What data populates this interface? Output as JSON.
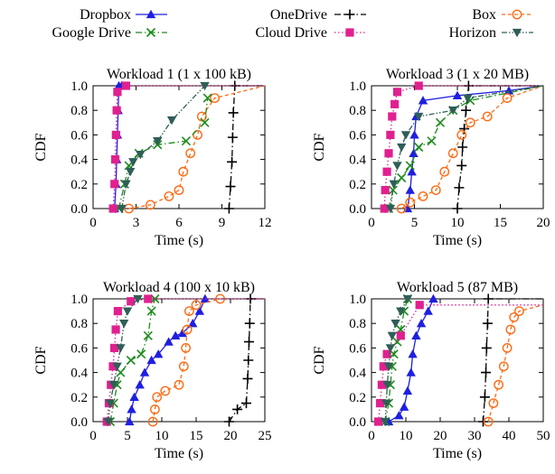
{
  "legend": [
    {
      "name": "Dropbox",
      "color": "#1f1fe0",
      "marker": "triangle",
      "dash": "solid"
    },
    {
      "name": "OneDrive",
      "color": "#000000",
      "marker": "plus",
      "dash": "dashdot"
    },
    {
      "name": "Box",
      "color": "#ff6a13",
      "marker": "circle",
      "dash": "dashed"
    },
    {
      "name": "Google Drive",
      "color": "#1c8c1c",
      "marker": "cross",
      "dash": "dashdot"
    },
    {
      "name": "Cloud Drive",
      "color": "#e0208f",
      "marker": "square",
      "dash": "dotted"
    },
    {
      "name": "Horizon",
      "color": "#2f5f57",
      "marker": "tridown",
      "dash": "dashdotdot"
    }
  ],
  "chart_data": [
    {
      "type": "line",
      "title": "Workload 1 (1 x 100 kB)",
      "xlabel": "Time (s)",
      "ylabel": "CDF",
      "xlim": [
        0,
        12
      ],
      "ylim": [
        0,
        1
      ],
      "xticks": [
        "0",
        "3",
        "6",
        "9",
        "12"
      ],
      "yticks": [
        "0.0",
        "0.2",
        "0.4",
        "0.6",
        "0.8",
        "1.0"
      ],
      "series": [
        {
          "name": "Dropbox",
          "x": [
            1.5,
            1.6,
            1.65,
            1.7,
            1.75,
            1.8,
            2.0
          ],
          "y": [
            0.0,
            0.2,
            0.4,
            0.6,
            0.8,
            1.0,
            1.0
          ]
        },
        {
          "name": "OneDrive",
          "x": [
            9.5,
            9.6,
            9.7,
            9.75,
            9.8,
            9.9,
            12.0
          ],
          "y": [
            0.0,
            0.18,
            0.38,
            0.58,
            0.78,
            1.0,
            1.0
          ]
        },
        {
          "name": "Box",
          "x": [
            2.5,
            4.0,
            5.3,
            6.0,
            6.3,
            6.8,
            7.3,
            7.6,
            8.5,
            12.0
          ],
          "y": [
            0.0,
            0.03,
            0.1,
            0.15,
            0.3,
            0.45,
            0.6,
            0.75,
            0.9,
            1.0
          ]
        },
        {
          "name": "Google Drive",
          "x": [
            1.8,
            2.2,
            2.5,
            3.2,
            4.5,
            6.5,
            7.8,
            8.0
          ],
          "y": [
            0.0,
            0.2,
            0.35,
            0.45,
            0.52,
            0.55,
            0.7,
            0.9
          ]
        },
        {
          "name": "Cloud Drive",
          "x": [
            1.4,
            1.5,
            1.55,
            1.6,
            1.65,
            1.7,
            2.3,
            12.0
          ],
          "y": [
            0.0,
            0.2,
            0.4,
            0.6,
            0.8,
            0.95,
            1.0,
            1.0
          ]
        },
        {
          "name": "Horizon",
          "x": [
            2.0,
            2.3,
            2.6,
            2.8,
            3.3,
            4.5,
            5.5,
            7.8
          ],
          "y": [
            0.0,
            0.2,
            0.3,
            0.38,
            0.44,
            0.55,
            0.72,
            1.0
          ]
        }
      ]
    },
    {
      "type": "line",
      "title": "Workload 3 (1 x 20 MB)",
      "xlabel": "Time (s)",
      "ylabel": "CDF",
      "xlim": [
        0,
        20
      ],
      "ylim": [
        0,
        1
      ],
      "xticks": [
        "0",
        "5",
        "10",
        "15",
        "20"
      ],
      "yticks": [
        "0.0",
        "0.2",
        "0.4",
        "0.6",
        "0.8",
        "1.0"
      ],
      "series": [
        {
          "name": "Dropbox",
          "x": [
            4.2,
            4.5,
            4.7,
            4.9,
            5.0,
            5.2,
            6.0,
            10.0,
            16.0,
            20.0
          ],
          "y": [
            0.0,
            0.15,
            0.3,
            0.45,
            0.6,
            0.75,
            0.88,
            0.92,
            0.96,
            1.0
          ]
        },
        {
          "name": "OneDrive",
          "x": [
            10.0,
            10.2,
            10.5,
            10.6,
            10.8,
            11.0,
            11.3,
            20.0
          ],
          "y": [
            0.0,
            0.17,
            0.35,
            0.5,
            0.65,
            0.8,
            1.0,
            1.0
          ]
        },
        {
          "name": "Box",
          "x": [
            3.5,
            4.5,
            6.0,
            7.5,
            8.5,
            9.5,
            10.5,
            11.5,
            13.5,
            15.8,
            20.0
          ],
          "y": [
            0.0,
            0.05,
            0.1,
            0.15,
            0.3,
            0.45,
            0.6,
            0.7,
            0.75,
            0.9,
            1.0
          ]
        },
        {
          "name": "Google Drive",
          "x": [
            2.0,
            2.5,
            3.5,
            4.5,
            5.5,
            7.0,
            8.0,
            9.5,
            11.5,
            20.0
          ],
          "y": [
            0.0,
            0.15,
            0.25,
            0.35,
            0.5,
            0.55,
            0.7,
            0.8,
            0.88,
            1.0
          ]
        },
        {
          "name": "Cloud Drive",
          "x": [
            1.5,
            1.6,
            1.8,
            2.0,
            2.2,
            2.4,
            2.7,
            3.0,
            5.5,
            20.0
          ],
          "y": [
            0.0,
            0.15,
            0.3,
            0.45,
            0.6,
            0.75,
            0.85,
            0.95,
            1.0,
            1.0
          ]
        },
        {
          "name": "Horizon",
          "x": [
            2.2,
            2.6,
            3.0,
            3.5,
            4.0,
            5.5,
            9.5,
            11.2,
            20.0
          ],
          "y": [
            0.0,
            0.2,
            0.35,
            0.5,
            0.6,
            0.75,
            0.8,
            0.9,
            1.0
          ]
        }
      ]
    },
    {
      "type": "line",
      "title": "Workload 4 (100 x 10 kB)",
      "xlabel": "Time (s)",
      "ylabel": "CDF",
      "xlim": [
        0,
        25
      ],
      "ylim": [
        0,
        1
      ],
      "xticks": [
        "0",
        "5",
        "10",
        "15",
        "20",
        "25"
      ],
      "yticks": [
        "0.0",
        "0.2",
        "0.4",
        "0.6",
        "0.8",
        "1.0"
      ],
      "series": [
        {
          "name": "Dropbox",
          "x": [
            5.3,
            5.6,
            6.0,
            6.8,
            7.5,
            8.5,
            9.5,
            11.0,
            12.0,
            13.0,
            14.5,
            15.5,
            16.3
          ],
          "y": [
            0.0,
            0.1,
            0.2,
            0.3,
            0.4,
            0.5,
            0.55,
            0.65,
            0.7,
            0.72,
            0.8,
            0.9,
            1.0
          ]
        },
        {
          "name": "OneDrive",
          "x": [
            19.8,
            21.0,
            22.3,
            22.5,
            22.6,
            22.7,
            22.8,
            22.9,
            25.0
          ],
          "y": [
            0.0,
            0.1,
            0.15,
            0.35,
            0.5,
            0.65,
            0.8,
            1.0,
            1.0
          ]
        },
        {
          "name": "Box",
          "x": [
            8.7,
            9.0,
            9.3,
            10.5,
            12.5,
            13.2,
            13.5,
            13.7,
            14.0,
            15.0,
            18.5
          ],
          "y": [
            0.0,
            0.1,
            0.2,
            0.25,
            0.3,
            0.45,
            0.6,
            0.75,
            0.9,
            0.95,
            1.0
          ]
        },
        {
          "name": "Google Drive",
          "x": [
            2.5,
            3.0,
            3.5,
            4.0,
            5.5,
            7.0,
            8.0,
            8.5,
            9.0
          ],
          "y": [
            0.0,
            0.15,
            0.3,
            0.4,
            0.5,
            0.55,
            0.7,
            0.9,
            1.0
          ]
        },
        {
          "name": "Cloud Drive",
          "x": [
            2.0,
            2.3,
            2.6,
            2.9,
            3.1,
            3.3,
            3.6,
            5.5,
            8.0,
            25.0
          ],
          "y": [
            0.0,
            0.15,
            0.3,
            0.45,
            0.6,
            0.75,
            0.9,
            0.98,
            1.0,
            1.0
          ]
        },
        {
          "name": "Horizon",
          "x": [
            2.2,
            2.5,
            3.0,
            3.5,
            4.0,
            4.5,
            5.0,
            6.5
          ],
          "y": [
            0.0,
            0.15,
            0.3,
            0.45,
            0.6,
            0.8,
            0.9,
            1.0
          ]
        }
      ]
    },
    {
      "type": "line",
      "title": "Workload 5 (87 MB)",
      "xlabel": "Time (s)",
      "ylabel": "CDF",
      "xlim": [
        0,
        50
      ],
      "ylim": [
        0,
        1
      ],
      "xticks": [
        "0",
        "10",
        "20",
        "30",
        "40",
        "50"
      ],
      "yticks": [
        "0.0",
        "0.2",
        "0.4",
        "0.6",
        "0.8",
        "1.0"
      ],
      "series": [
        {
          "name": "Dropbox",
          "x": [
            5.0,
            8.0,
            9.5,
            10.5,
            11.5,
            12.0,
            13.0,
            14.5,
            16.5,
            18.0
          ],
          "y": [
            0.0,
            0.05,
            0.12,
            0.25,
            0.4,
            0.55,
            0.7,
            0.8,
            0.9,
            1.0
          ]
        },
        {
          "name": "OneDrive",
          "x": [
            32.5,
            33.0,
            33.3,
            33.5,
            33.8,
            34.0,
            50.0
          ],
          "y": [
            0.0,
            0.2,
            0.4,
            0.6,
            0.8,
            1.0,
            1.0
          ]
        },
        {
          "name": "Box",
          "x": [
            34.0,
            35.5,
            37.0,
            38.5,
            39.5,
            40.5,
            41.5,
            43.0,
            50.0
          ],
          "y": [
            0.0,
            0.15,
            0.3,
            0.45,
            0.6,
            0.75,
            0.85,
            0.9,
            0.95
          ]
        },
        {
          "name": "Google Drive",
          "x": [
            4.0,
            5.0,
            5.5,
            6.0,
            6.5,
            7.5,
            8.5,
            9.5,
            10.5
          ],
          "y": [
            0.0,
            0.15,
            0.3,
            0.45,
            0.55,
            0.65,
            0.75,
            0.9,
            1.0
          ]
        },
        {
          "name": "Cloud Drive",
          "x": [
            2.0,
            2.5,
            3.0,
            3.5,
            4.5,
            8.5,
            14.0,
            50.0
          ],
          "y": [
            0.0,
            0.15,
            0.3,
            0.45,
            0.55,
            0.7,
            0.95,
            0.95
          ]
        },
        {
          "name": "Horizon",
          "x": [
            4.0,
            4.3,
            4.6,
            5.0,
            5.5,
            6.0,
            7.0,
            8.5,
            10.5
          ],
          "y": [
            0.0,
            0.15,
            0.3,
            0.45,
            0.6,
            0.7,
            0.8,
            0.9,
            1.0
          ]
        }
      ]
    }
  ]
}
